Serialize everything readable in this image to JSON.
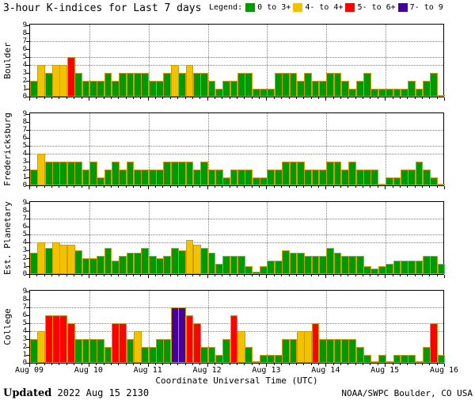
{
  "title": "3-hour K-indices for Last 7 days",
  "legend": {
    "label": "Legend:",
    "items": [
      {
        "label": "0 to 3+",
        "color": "#009900"
      },
      {
        "label": "4- to 4+",
        "color": "#f2c200"
      },
      {
        "label": "5- to 6+",
        "color": "#ff0000"
      },
      {
        "label": "7- to 9",
        "color": "#440099"
      }
    ]
  },
  "colors": {
    "green": "#009900",
    "yellow": "#f2c200",
    "red": "#ff0000",
    "purple": "#440099",
    "bar_outline": "#cf9e00",
    "grid": "#808080",
    "axis": "#000000",
    "background": "#ffffff"
  },
  "y_axis": {
    "ticks": [
      9,
      8,
      7,
      6,
      5,
      4,
      3,
      2,
      1,
      0
    ],
    "dotted_gridlines_at": [
      4,
      5,
      7
    ]
  },
  "x_axis": {
    "title": "Coordinate Universal Time (UTC)",
    "tick_labels": [
      "Aug 09",
      "Aug 10",
      "Aug 11",
      "Aug 12",
      "Aug 13",
      "Aug 14",
      "Aug 15",
      "Aug 16"
    ]
  },
  "footer": {
    "updated_label": "Updated",
    "updated_value": " 2022 Aug 15 2130",
    "source": "NOAA/SWPC Boulder, CO USA"
  },
  "chart_data": {
    "type": "bar",
    "title": "3-hour K-indices for Last 7 days",
    "ylim": [
      0,
      9
    ],
    "bars_per_day": 8,
    "days": [
      "Aug 09",
      "Aug 10",
      "Aug 11",
      "Aug 12",
      "Aug 13",
      "Aug 14",
      "Aug 15"
    ],
    "color_rule": "k<3.67 green; 3.67<=k<=4.33 yellow; 4.33<k<6.67 red; k>=6.67 purple",
    "series": [
      {
        "name": "Boulder",
        "values": [
          2,
          4,
          3,
          4,
          4,
          5,
          3,
          2,
          2,
          2,
          3,
          2,
          3,
          3,
          3,
          3,
          2,
          2,
          3,
          4,
          3,
          4,
          3,
          3,
          2,
          1,
          2,
          2,
          3,
          3,
          1,
          1,
          1,
          3,
          3,
          3,
          2,
          3,
          2,
          2,
          3,
          3,
          2,
          1,
          2,
          3,
          1,
          1,
          1,
          1,
          1,
          2,
          1,
          2,
          3,
          0
        ]
      },
      {
        "name": "Fredericksburg",
        "values": [
          2,
          4,
          3,
          3,
          3,
          3,
          3,
          2,
          3,
          1,
          2,
          3,
          2,
          3,
          2,
          2,
          2,
          2,
          3,
          3,
          3,
          3,
          2,
          3,
          2,
          2,
          1,
          2,
          2,
          2,
          1,
          1,
          2,
          2,
          3,
          3,
          3,
          2,
          2,
          2,
          3,
          3,
          2,
          3,
          2,
          2,
          2,
          0,
          1,
          1,
          2,
          2,
          3,
          2,
          1,
          0
        ]
      },
      {
        "name": "Est. Planetary",
        "values": [
          2.7,
          4,
          3.3,
          4,
          3.7,
          3.7,
          3,
          2,
          2,
          2.3,
          3.3,
          1.7,
          2.3,
          2.7,
          2.7,
          3.3,
          2.3,
          2,
          2.3,
          3.3,
          3,
          4.3,
          3.7,
          3.3,
          2.7,
          1.3,
          2.3,
          2.3,
          2.3,
          1,
          0.3,
          1,
          1.7,
          1.7,
          3,
          2.7,
          2.7,
          2.3,
          2.3,
          2.3,
          3.3,
          2.7,
          2.3,
          2.3,
          2.3,
          1,
          0.7,
          1,
          1.3,
          1.7,
          1.7,
          1.7,
          1.7,
          2.3,
          2.3,
          1.3
        ]
      },
      {
        "name": "College",
        "values": [
          3,
          4,
          6,
          6,
          6,
          5,
          3,
          3,
          3,
          3,
          2,
          5,
          5,
          3,
          4,
          2,
          2,
          3,
          3,
          7,
          7,
          6,
          5,
          2,
          2,
          1,
          3,
          6,
          4,
          2,
          0,
          1,
          1,
          1,
          3,
          3,
          4,
          4,
          5,
          3,
          3,
          3,
          3,
          3,
          2,
          1,
          0,
          1,
          0,
          1,
          1,
          1,
          0,
          2,
          5,
          1
        ]
      }
    ]
  }
}
